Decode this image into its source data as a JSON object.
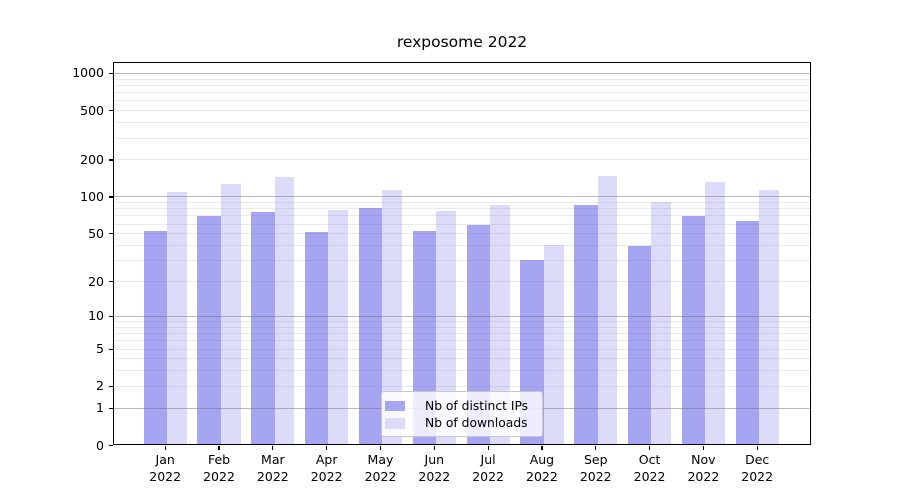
{
  "title": "rexposome 2022",
  "chart_data": {
    "type": "bar",
    "title": "rexposome 2022",
    "scale": "log1p",
    "grid": true,
    "legend_position": "lower center",
    "categories": [
      "Jan",
      "Feb",
      "Mar",
      "Apr",
      "May",
      "Jun",
      "Jul",
      "Aug",
      "Sep",
      "Oct",
      "Nov",
      "Dec"
    ],
    "year": "2022",
    "series": [
      {
        "name": "Nb of distinct IPs",
        "color": "#a5a5f2",
        "values": [
          52,
          69,
          75,
          51,
          80,
          52,
          58,
          30,
          85,
          39,
          69,
          63
        ]
      },
      {
        "name": "Nb of downloads",
        "color": "#dcdcfa",
        "values": [
          109,
          126,
          143,
          77,
          112,
          76,
          85,
          40,
          147,
          90,
          132,
          113
        ]
      }
    ],
    "y_ticks": [
      0,
      1,
      2,
      5,
      10,
      20,
      50,
      100,
      200,
      500,
      1000
    ],
    "ylim": [
      0,
      1233
    ]
  }
}
